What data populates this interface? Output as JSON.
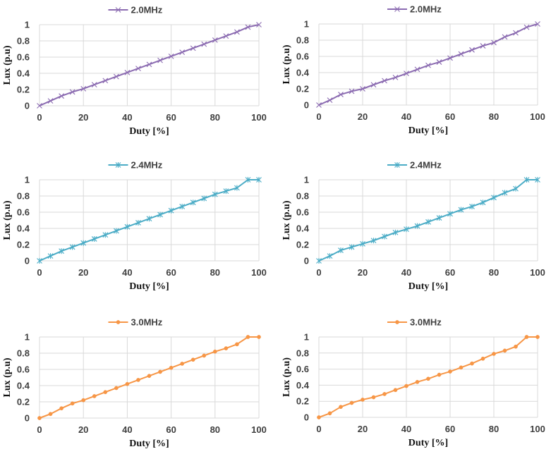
{
  "chart_data": [
    {
      "type": "line",
      "series": [
        {
          "name": "2.0MHz",
          "color": "#8B6BB1",
          "marker": "x",
          "x": [
            0,
            5,
            10,
            15,
            20,
            25,
            30,
            35,
            40,
            45,
            50,
            55,
            60,
            65,
            70,
            75,
            80,
            85,
            90,
            95,
            100
          ],
          "values": [
            0,
            0.06,
            0.12,
            0.17,
            0.21,
            0.26,
            0.31,
            0.36,
            0.41,
            0.46,
            0.51,
            0.56,
            0.61,
            0.66,
            0.71,
            0.76,
            0.81,
            0.86,
            0.91,
            0.97,
            1.0
          ]
        }
      ],
      "xlabel": "Duty [%]",
      "ylabel": "Lux (p.u)",
      "xlim": [
        0,
        100
      ],
      "ylim": [
        0,
        1
      ],
      "xticks": [
        "0",
        "20",
        "40",
        "60",
        "80",
        "100"
      ],
      "yticks": [
        "0",
        "0.2",
        "0.4",
        "0.6",
        "0.8",
        "1"
      ],
      "grid": true,
      "legend": "top"
    },
    {
      "type": "line",
      "series": [
        {
          "name": "2.0MHz",
          "color": "#8B6BB1",
          "marker": "x",
          "x": [
            0,
            5,
            10,
            15,
            20,
            25,
            30,
            35,
            40,
            45,
            50,
            55,
            60,
            65,
            70,
            75,
            80,
            85,
            90,
            95,
            100
          ],
          "values": [
            0,
            0.06,
            0.13,
            0.17,
            0.2,
            0.25,
            0.3,
            0.34,
            0.39,
            0.44,
            0.49,
            0.53,
            0.58,
            0.63,
            0.68,
            0.73,
            0.77,
            0.84,
            0.89,
            0.96,
            1.0
          ]
        }
      ],
      "xlabel": "Duty [%]",
      "ylabel": "Lux (p.u)",
      "xlim": [
        0,
        100
      ],
      "ylim": [
        0,
        1
      ],
      "xticks": [
        "0",
        "20",
        "40",
        "60",
        "80",
        "100"
      ],
      "yticks": [
        "0",
        "0.2",
        "0.4",
        "0.6",
        "0.8",
        "1"
      ],
      "grid": true,
      "legend": "top"
    },
    {
      "type": "line",
      "series": [
        {
          "name": "2.4MHz",
          "color": "#4BACC6",
          "marker": "star",
          "x": [
            0,
            5,
            10,
            15,
            20,
            25,
            30,
            35,
            40,
            45,
            50,
            55,
            60,
            65,
            70,
            75,
            80,
            85,
            90,
            95,
            100
          ],
          "values": [
            0,
            0.06,
            0.12,
            0.17,
            0.22,
            0.27,
            0.32,
            0.37,
            0.42,
            0.47,
            0.52,
            0.57,
            0.62,
            0.67,
            0.72,
            0.77,
            0.82,
            0.86,
            0.9,
            1.0,
            1.0
          ]
        }
      ],
      "xlabel": "Duty [%]",
      "ylabel": "Lux (p.u)",
      "xlim": [
        0,
        100
      ],
      "ylim": [
        0,
        1
      ],
      "xticks": [
        "0",
        "20",
        "40",
        "60",
        "80",
        "100"
      ],
      "yticks": [
        "0",
        "0.2",
        "0.4",
        "0.6",
        "0.8",
        "1"
      ],
      "grid": true,
      "legend": "top"
    },
    {
      "type": "line",
      "series": [
        {
          "name": "2.4MHz",
          "color": "#4BACC6",
          "marker": "star",
          "x": [
            0,
            5,
            10,
            15,
            20,
            25,
            30,
            35,
            40,
            45,
            50,
            55,
            60,
            65,
            70,
            75,
            80,
            85,
            90,
            95,
            100
          ],
          "values": [
            0,
            0.06,
            0.13,
            0.17,
            0.21,
            0.25,
            0.3,
            0.35,
            0.39,
            0.43,
            0.48,
            0.53,
            0.58,
            0.63,
            0.67,
            0.72,
            0.78,
            0.84,
            0.89,
            1.0,
            1.0
          ]
        }
      ],
      "xlabel": "Duty [%]",
      "ylabel": "Lux (p.u)",
      "xlim": [
        0,
        100
      ],
      "ylim": [
        0,
        1
      ],
      "xticks": [
        "0",
        "20",
        "40",
        "60",
        "80",
        "100"
      ],
      "yticks": [
        "0",
        "0.2",
        "0.4",
        "0.6",
        "0.8",
        "1"
      ],
      "grid": true,
      "legend": "top"
    },
    {
      "type": "line",
      "series": [
        {
          "name": "3.0MHz",
          "color": "#F79646",
          "marker": "circle",
          "x": [
            0,
            5,
            10,
            15,
            20,
            25,
            30,
            35,
            40,
            45,
            50,
            55,
            60,
            65,
            70,
            75,
            80,
            85,
            90,
            95,
            100
          ],
          "values": [
            0,
            0.05,
            0.12,
            0.18,
            0.22,
            0.27,
            0.32,
            0.37,
            0.42,
            0.47,
            0.52,
            0.57,
            0.62,
            0.67,
            0.72,
            0.77,
            0.82,
            0.86,
            0.91,
            1.0,
            1.0
          ]
        }
      ],
      "xlabel": "Duty [%]",
      "ylabel": "Lux (p.u)",
      "xlim": [
        0,
        100
      ],
      "ylim": [
        0,
        1
      ],
      "xticks": [
        "0",
        "20",
        "40",
        "60",
        "80",
        "100"
      ],
      "yticks": [
        "0",
        "0.2",
        "0.4",
        "0.6",
        "0.8",
        "1"
      ],
      "grid": true,
      "legend": "top"
    },
    {
      "type": "line",
      "series": [
        {
          "name": "3.0MHz",
          "color": "#F79646",
          "marker": "circle",
          "x": [
            0,
            5,
            10,
            15,
            20,
            25,
            30,
            35,
            40,
            45,
            50,
            55,
            60,
            65,
            70,
            75,
            80,
            85,
            90,
            95,
            100
          ],
          "values": [
            0,
            0.05,
            0.13,
            0.18,
            0.22,
            0.25,
            0.29,
            0.34,
            0.39,
            0.44,
            0.48,
            0.53,
            0.57,
            0.62,
            0.67,
            0.73,
            0.79,
            0.83,
            0.88,
            1.0,
            1.0
          ]
        }
      ],
      "xlabel": "Duty [%]",
      "ylabel": "Lux (p.u)",
      "xlim": [
        0,
        100
      ],
      "ylim": [
        0,
        1
      ],
      "xticks": [
        "0",
        "20",
        "40",
        "60",
        "80",
        "100"
      ],
      "yticks": [
        "0",
        "0.2",
        "0.4",
        "0.6",
        "0.8",
        "1"
      ],
      "grid": true,
      "legend": "top"
    }
  ]
}
